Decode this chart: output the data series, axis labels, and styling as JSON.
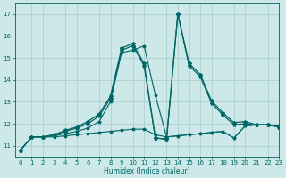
{
  "xlabel": "Humidex (Indice chaleur)",
  "xlim": [
    -0.5,
    23
  ],
  "ylim": [
    10.5,
    17.5
  ],
  "yticks": [
    11,
    12,
    13,
    14,
    15,
    16,
    17
  ],
  "xticks": [
    0,
    1,
    2,
    3,
    4,
    5,
    6,
    7,
    8,
    9,
    10,
    11,
    12,
    13,
    14,
    15,
    16,
    17,
    18,
    19,
    20,
    21,
    22,
    23
  ],
  "bg_color": "#cce8e8",
  "grid_color": "#aacccc",
  "line_color": "#006666",
  "series": [
    [
      10.8,
      11.4,
      11.4,
      11.4,
      11.45,
      11.5,
      11.55,
      11.6,
      11.65,
      11.7,
      11.75,
      11.75,
      11.5,
      11.4,
      11.45,
      11.5,
      11.55,
      11.6,
      11.65,
      11.35,
      11.9,
      11.95,
      11.95,
      11.9
    ],
    [
      10.8,
      11.4,
      11.4,
      11.45,
      11.55,
      11.65,
      11.8,
      12.1,
      13.0,
      15.25,
      15.35,
      15.55,
      13.3,
      11.4,
      11.45,
      11.5,
      11.55,
      11.6,
      11.65,
      11.35,
      11.9,
      11.95,
      11.95,
      11.9
    ],
    [
      10.8,
      11.4,
      11.4,
      11.5,
      11.65,
      11.8,
      12.0,
      12.35,
      13.15,
      15.35,
      15.55,
      14.65,
      11.35,
      11.3,
      17.0,
      14.65,
      14.15,
      12.95,
      12.4,
      11.95,
      12.0,
      11.95,
      11.95,
      11.85
    ],
    [
      10.8,
      11.4,
      11.4,
      11.5,
      11.7,
      11.85,
      12.1,
      12.45,
      13.25,
      15.45,
      15.65,
      14.75,
      11.35,
      11.3,
      17.0,
      14.75,
      14.25,
      13.05,
      12.5,
      12.05,
      12.1,
      11.95,
      11.95,
      11.85
    ]
  ],
  "markers": [
    "*",
    "*",
    "*",
    "*"
  ],
  "linewidths": [
    0.8,
    0.8,
    0.9,
    0.9
  ],
  "markersizes": [
    2.5,
    2.5,
    3.0,
    3.0
  ]
}
